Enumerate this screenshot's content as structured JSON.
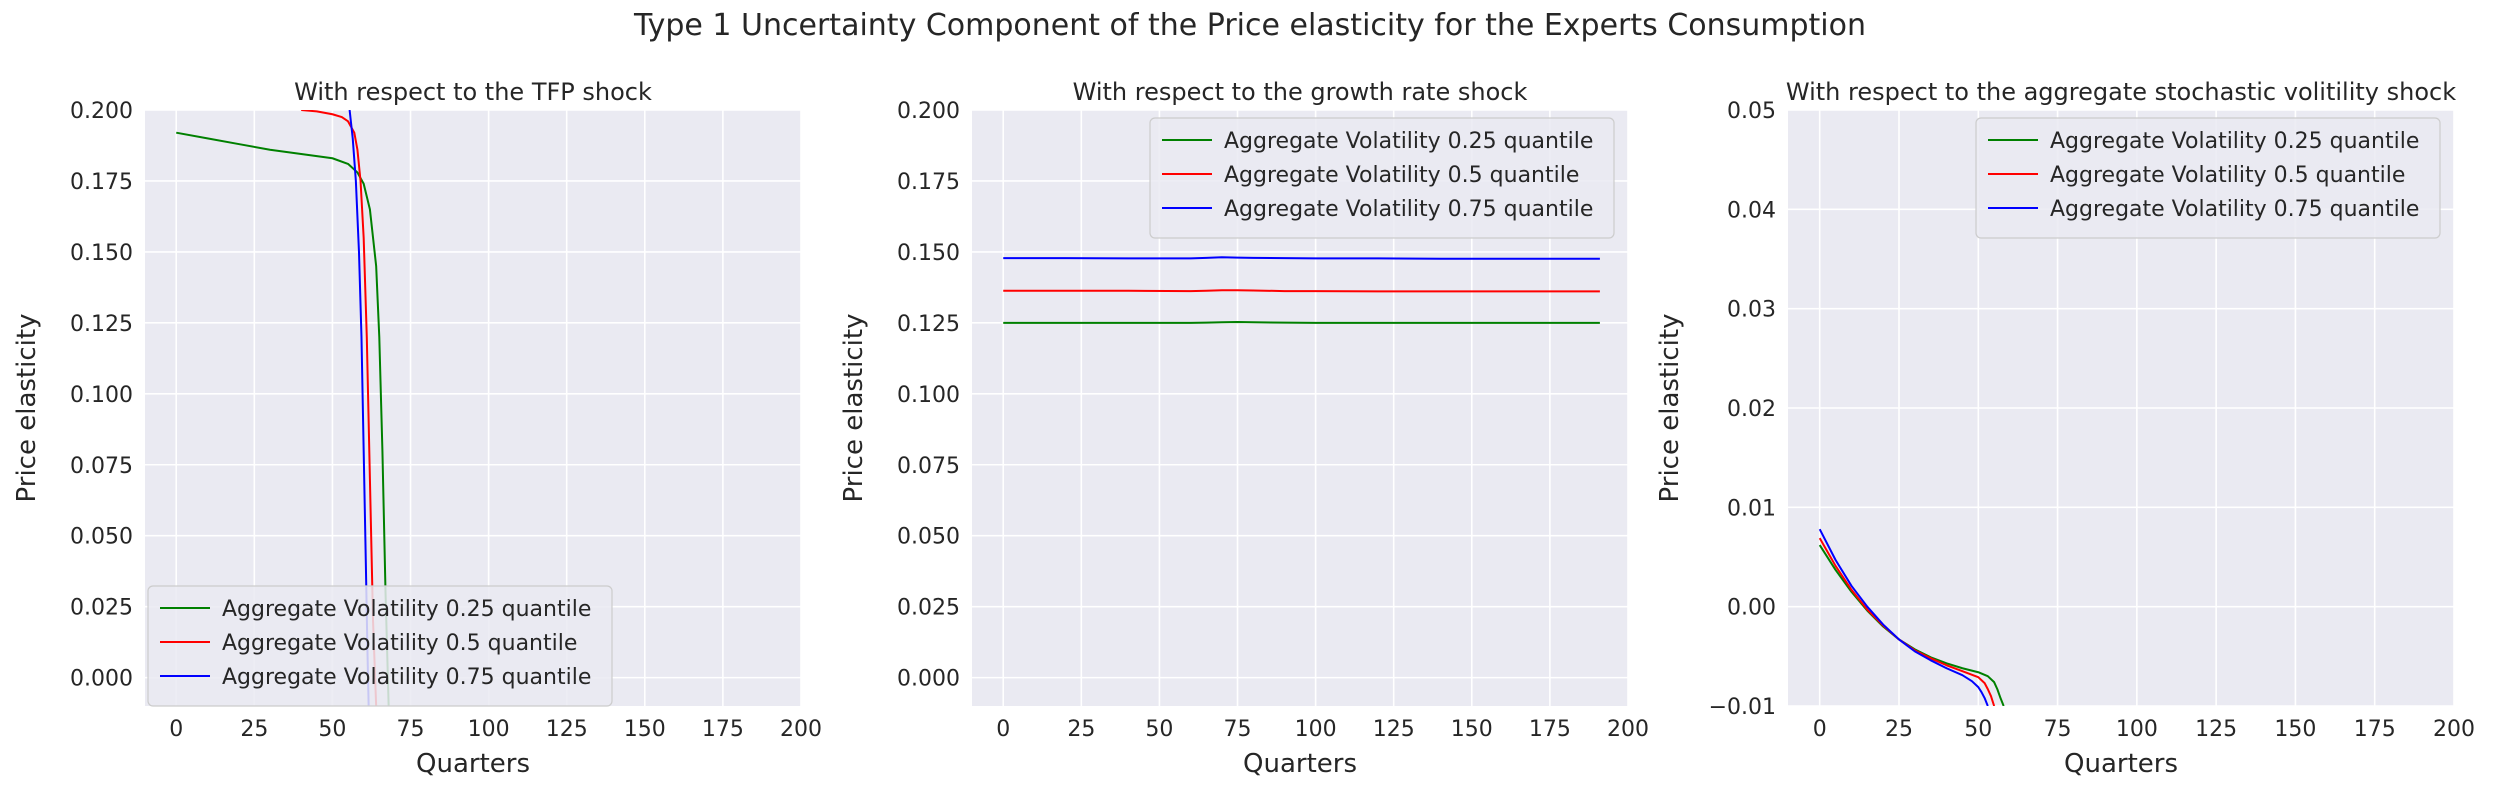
{
  "figure": {
    "title": "Type 1 Uncertainty Component of the Price elasticity for the Experts Consumption"
  },
  "style": {
    "plot_background": "#eaeaf2",
    "grid_color": "#ffffff",
    "text_color": "#262626"
  },
  "chart_data": [
    {
      "type": "line",
      "title": "With respect to the TFP shock",
      "xlabel": "Quarters",
      "ylabel": "Price elasticity",
      "xlim": [
        -10,
        200
      ],
      "ylim": [
        -0.01,
        0.2
      ],
      "xticks": [
        0,
        25,
        50,
        75,
        100,
        125,
        150,
        175,
        200
      ],
      "xtick_labels": [
        "0",
        "25",
        "50",
        "75",
        "100",
        "125",
        "150",
        "175",
        "200"
      ],
      "yticks": [
        0.0,
        0.025,
        0.05,
        0.075,
        0.1,
        0.125,
        0.15,
        0.175,
        0.2
      ],
      "ytick_labels": [
        "0.000",
        "0.025",
        "0.050",
        "0.075",
        "0.100",
        "0.125",
        "0.150",
        "0.175",
        "0.200"
      ],
      "grid": true,
      "legend_position": "lower-left",
      "series": [
        {
          "name": "Aggregate Volatility 0.25 quantile",
          "color": "#008000",
          "x": [
            0,
            10,
            20,
            30,
            40,
            50,
            55,
            58,
            60,
            62,
            64,
            65,
            66,
            67,
            68
          ],
          "y": [
            0.192,
            0.19,
            0.188,
            0.186,
            0.1845,
            0.183,
            0.181,
            0.178,
            0.174,
            0.165,
            0.145,
            0.12,
            0.08,
            0.03,
            -0.01
          ]
        },
        {
          "name": "Aggregate Volatility 0.5 quantile",
          "color": "#ff0000",
          "x": [
            40,
            45,
            50,
            53,
            55,
            57,
            58,
            59,
            60,
            61,
            62,
            63,
            64
          ],
          "y": [
            0.2,
            0.1995,
            0.1985,
            0.1975,
            0.196,
            0.192,
            0.186,
            0.175,
            0.155,
            0.12,
            0.07,
            0.02,
            -0.01
          ]
        },
        {
          "name": "Aggregate Volatility 0.75 quantile",
          "color": "#0000ff",
          "x": [
            55.5,
            56.5,
            57.5,
            58.5,
            59.3,
            60,
            60.7,
            61.2,
            61.6
          ],
          "y": [
            0.2,
            0.19,
            0.175,
            0.15,
            0.12,
            0.08,
            0.04,
            0.01,
            -0.01
          ]
        }
      ]
    },
    {
      "type": "line",
      "title": "With respect to the growth rate shock",
      "xlabel": "Quarters",
      "ylabel": "Price elasticity",
      "xlim": [
        -10,
        200
      ],
      "ylim": [
        -0.01,
        0.2
      ],
      "xticks": [
        0,
        25,
        50,
        75,
        100,
        125,
        150,
        175,
        200
      ],
      "xtick_labels": [
        "0",
        "25",
        "50",
        "75",
        "100",
        "125",
        "150",
        "175",
        "200"
      ],
      "yticks": [
        0.0,
        0.025,
        0.05,
        0.075,
        0.1,
        0.125,
        0.15,
        0.175,
        0.2
      ],
      "ytick_labels": [
        "0.000",
        "0.025",
        "0.050",
        "0.075",
        "0.100",
        "0.125",
        "0.150",
        "0.175",
        "0.200"
      ],
      "grid": true,
      "legend_position": "upper-right",
      "series": [
        {
          "name": "Aggregate Volatility 0.25 quantile",
          "color": "#008000",
          "x": [
            0,
            20,
            40,
            60,
            65,
            70,
            75,
            80,
            90,
            100,
            120,
            140,
            160,
            180,
            191
          ],
          "y": [
            0.125,
            0.125,
            0.125,
            0.125,
            0.1251,
            0.1252,
            0.1253,
            0.1252,
            0.1251,
            0.125,
            0.125,
            0.125,
            0.125,
            0.125,
            0.125
          ]
        },
        {
          "name": "Aggregate Volatility 0.5 quantile",
          "color": "#ff0000",
          "x": [
            0,
            20,
            40,
            60,
            65,
            70,
            75,
            80,
            90,
            100,
            120,
            140,
            160,
            180,
            191
          ],
          "y": [
            0.1363,
            0.1363,
            0.1363,
            0.1362,
            0.1363,
            0.1365,
            0.1365,
            0.1364,
            0.1362,
            0.1362,
            0.1361,
            0.1361,
            0.1361,
            0.1361,
            0.1361
          ]
        },
        {
          "name": "Aggregate Volatility 0.75 quantile",
          "color": "#0000ff",
          "x": [
            0,
            20,
            40,
            60,
            65,
            70,
            75,
            80,
            90,
            100,
            120,
            140,
            160,
            180,
            191
          ],
          "y": [
            0.1478,
            0.1478,
            0.1477,
            0.1477,
            0.1479,
            0.1481,
            0.148,
            0.1479,
            0.1478,
            0.1477,
            0.1477,
            0.1476,
            0.1476,
            0.1476,
            0.1476
          ]
        }
      ]
    },
    {
      "type": "line",
      "title": "With respect to the aggregate stochastic volitility shock",
      "xlabel": "Quarters",
      "ylabel": "Price elasticity",
      "xlim": [
        -10,
        200
      ],
      "ylim": [
        -0.01,
        0.05
      ],
      "xticks": [
        0,
        25,
        50,
        75,
        100,
        125,
        150,
        175,
        200
      ],
      "xtick_labels": [
        "0",
        "25",
        "50",
        "75",
        "100",
        "125",
        "150",
        "175",
        "200"
      ],
      "yticks": [
        -0.01,
        0.0,
        0.01,
        0.02,
        0.03,
        0.04,
        0.05
      ],
      "ytick_labels": [
        "−0.01",
        "0.00",
        "0.01",
        "0.02",
        "0.03",
        "0.04",
        "0.05"
      ],
      "grid": true,
      "legend_position": "upper-right",
      "series": [
        {
          "name": "Aggregate Volatility 0.25 quantile",
          "color": "#008000",
          "x": [
            0,
            5,
            10,
            15,
            20,
            25,
            30,
            35,
            40,
            45,
            50,
            53,
            55,
            56,
            57,
            58
          ],
          "y": [
            0.0062,
            0.0037,
            0.0015,
            -0.0004,
            -0.002,
            -0.0033,
            -0.0043,
            -0.0051,
            -0.0057,
            -0.0062,
            -0.0066,
            -0.007,
            -0.0076,
            -0.0083,
            -0.0092,
            -0.01
          ]
        },
        {
          "name": "Aggregate Volatility 0.5 quantile",
          "color": "#ff0000",
          "x": [
            0,
            5,
            10,
            15,
            20,
            25,
            30,
            35,
            40,
            45,
            50,
            52,
            53,
            54,
            55
          ],
          "y": [
            0.0069,
            0.0041,
            0.0017,
            -0.0003,
            -0.0019,
            -0.0033,
            -0.0044,
            -0.0052,
            -0.0059,
            -0.0065,
            -0.0071,
            -0.0077,
            -0.0083,
            -0.009,
            -0.01
          ]
        },
        {
          "name": "Aggregate Volatility 0.75 quantile",
          "color": "#0000ff",
          "x": [
            0,
            5,
            10,
            15,
            20,
            25,
            30,
            35,
            40,
            45,
            48,
            50,
            51,
            52,
            53
          ],
          "y": [
            0.0078,
            0.0047,
            0.0021,
            0.0,
            -0.0018,
            -0.0033,
            -0.0045,
            -0.0054,
            -0.0062,
            -0.0069,
            -0.0075,
            -0.0081,
            -0.0086,
            -0.0092,
            -0.01
          ]
        }
      ]
    }
  ]
}
